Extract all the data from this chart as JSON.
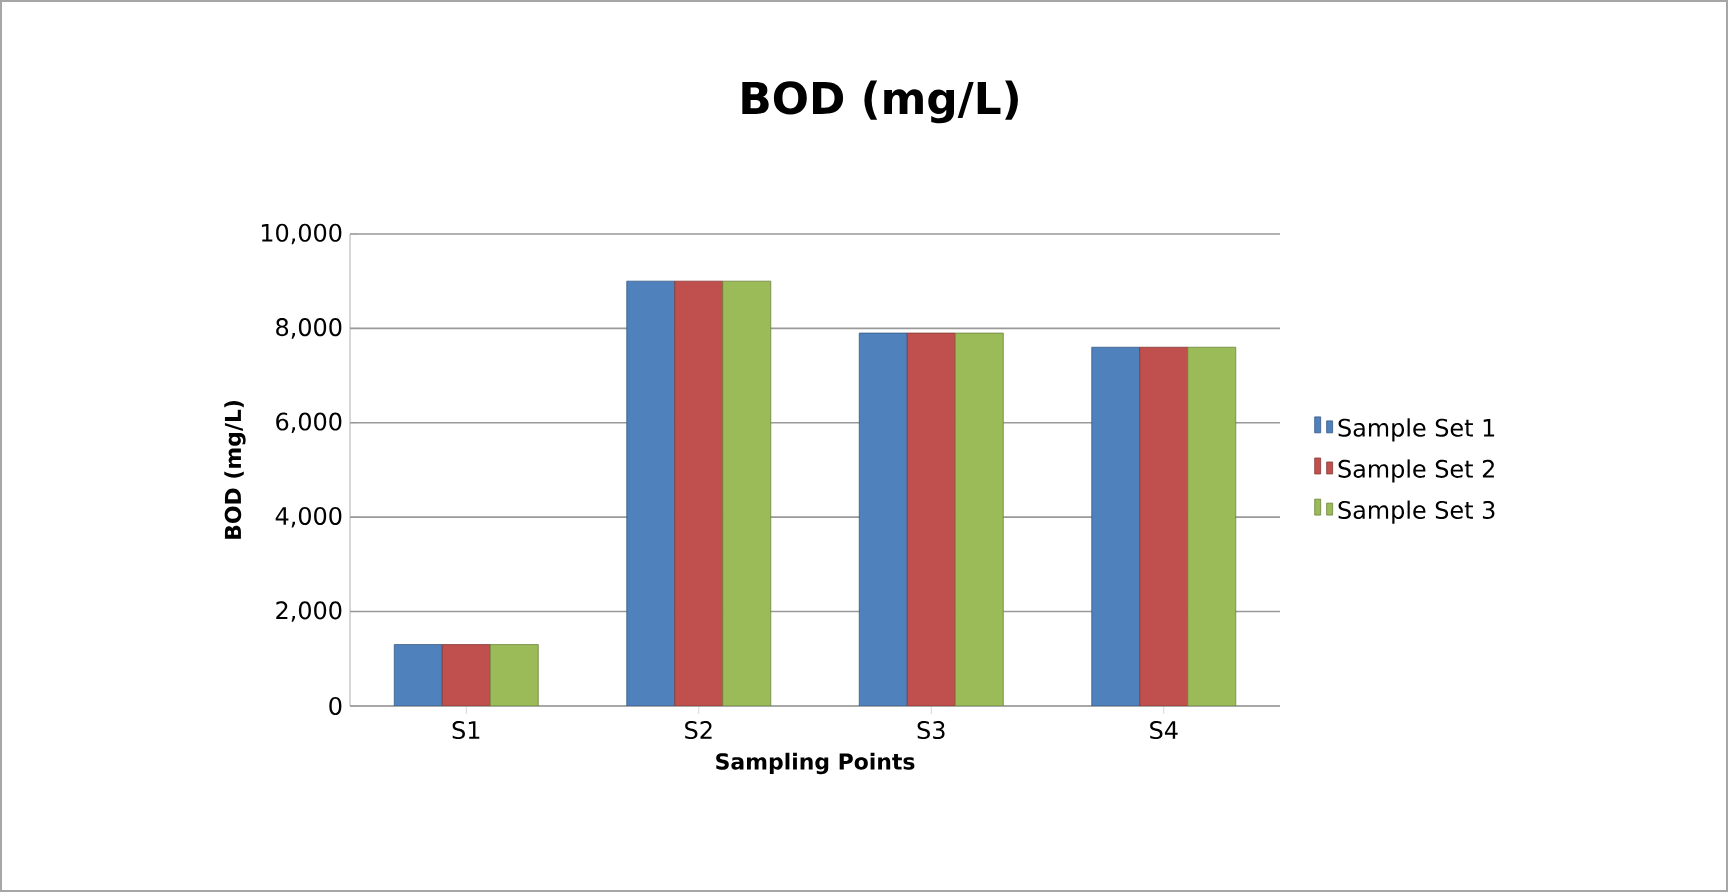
{
  "chart_data": {
    "type": "bar",
    "title": "BOD (mg/L)",
    "xlabel": "Sampling Points",
    "ylabel": "BOD (mg/L)",
    "categories": [
      "S1",
      "S2",
      "S3",
      "S4"
    ],
    "series": [
      {
        "name": "Sample Set 1",
        "color": "#4f81bd",
        "values": [
          1300,
          9000,
          7900,
          7600
        ]
      },
      {
        "name": "Sample Set 2",
        "color": "#c0504d",
        "values": [
          1300,
          9000,
          7900,
          7600
        ]
      },
      {
        "name": "Sample Set 3",
        "color": "#9bbb59",
        "values": [
          1300,
          9000,
          7900,
          7600
        ]
      }
    ],
    "ylim": [
      0,
      10000
    ],
    "yticks": [
      0,
      {
        "value": 2000,
        "label": "2,000"
      },
      {
        "value": 4000,
        "label": "4,000"
      },
      {
        "value": 6000,
        "label": "6,000"
      },
      {
        "value": 8000,
        "label": "8,000"
      },
      {
        "value": 10000,
        "label": "10,000"
      }
    ],
    "grid": "y",
    "legend": "right"
  }
}
